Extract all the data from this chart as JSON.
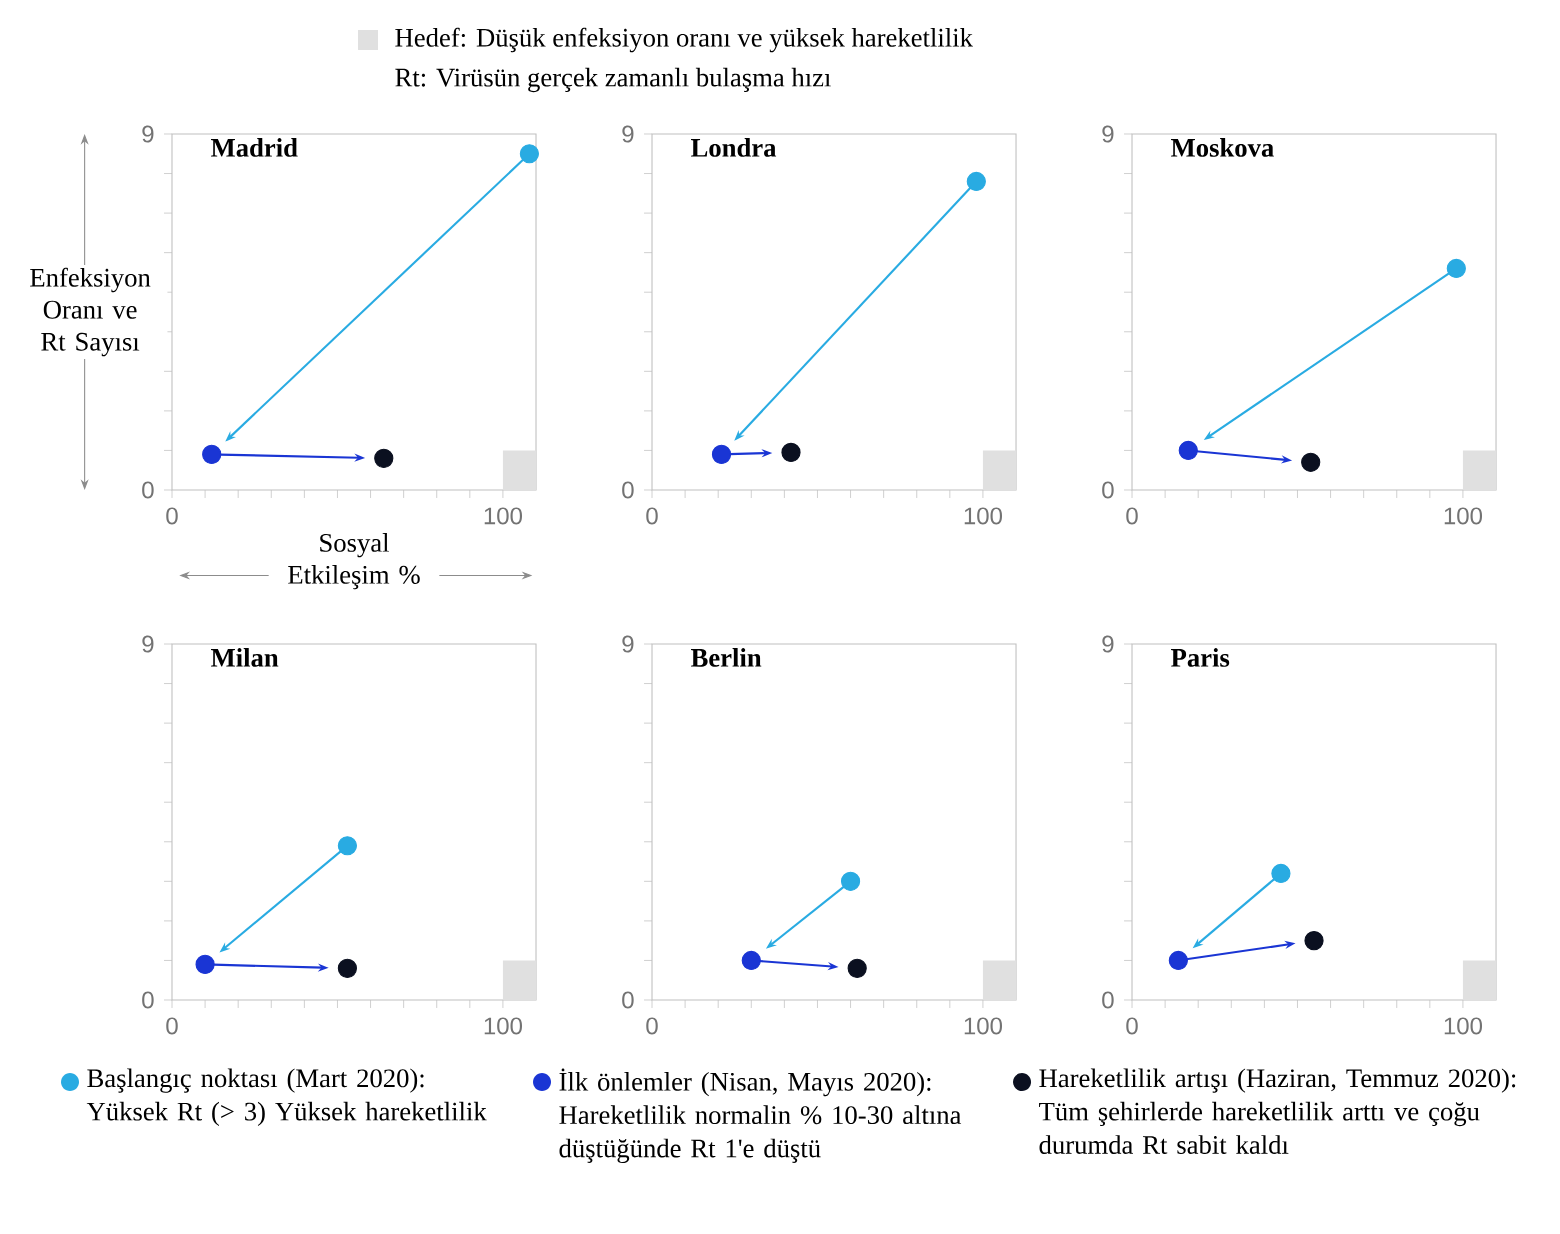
{
  "chart_data": [
    {
      "type": "scatter",
      "title": "Madrid",
      "xlabel": "Sosyal Etkileşim %",
      "ylabel": "Enfeksiyon Oranı ve Rt Sayısı",
      "legend": "bottom",
      "annotations": [
        "Hedef: Düşük enfeksiyon oranı ve yüksek hareketlilik",
        "Rt: Virüsün gerçek zamanlı bulaşma hızı"
      ],
      "xlim": [
        0,
        110
      ],
      "ylim": [
        0,
        9
      ],
      "xticks": [
        0,
        {
          "value": 10,
          "label": null
        },
        {
          "value": 20,
          "label": null
        },
        {
          "value": 30,
          "label": null
        },
        {
          "value": 40,
          "label": null
        },
        {
          "value": 50,
          "label": null
        },
        {
          "value": 60,
          "label": null
        },
        {
          "value": 70,
          "label": null
        },
        {
          "value": 80,
          "label": null
        },
        {
          "value": 90,
          "label": null
        },
        100
      ],
      "yticks": [
        0,
        {
          "value": 1,
          "label": null
        },
        {
          "value": 2,
          "label": null
        },
        {
          "value": 3,
          "label": null
        },
        {
          "value": 4,
          "label": null
        },
        {
          "value": 5,
          "label": null
        },
        {
          "value": 6,
          "label": null
        },
        {
          "value": 7,
          "label": null
        },
        {
          "value": 8,
          "label": null
        },
        9
      ],
      "series": [
        {
          "type": "area",
          "color": "#e0e0e0",
          "x": [
            100,
            110
          ],
          "values": [
            1,
            1
          ]
        },
        {
          "type": "scatter",
          "color": "#29abe2",
          "marker": "circle",
          "name": "Başlangıç noktası (Mart 2020): Yüksek Rt (> 3) Yüksek hareketlilik",
          "x": [
            108
          ],
          "values": [
            8.5
          ]
        },
        {
          "type": "scatter",
          "color": "#1a35d4",
          "marker": "circle",
          "name": "İlk önlemler (Nisan, Mayıs 2020): Hareketlilik normalin % 10-30 altına düştüğünde Rt 1'e düştü",
          "x": [
            12
          ],
          "values": [
            0.9
          ]
        },
        {
          "type": "scatter",
          "color": "#0b1020",
          "marker": "circle",
          "name": "Hareketlilik artışı (Haziran, Temmuz 2020): Tüm şehirlerde hareketlilik arttı ve çoğu durumda Rt sabit kaldı",
          "x": [
            64
          ],
          "values": [
            0.8
          ]
        }
      ]
    },
    {
      "type": "scatter",
      "title": "Londra",
      "xlim": [
        0,
        110
      ],
      "ylim": [
        0,
        9
      ],
      "xticks": [
        0,
        {
          "value": 10,
          "label": null
        },
        {
          "value": 20,
          "label": null
        },
        {
          "value": 30,
          "label": null
        },
        {
          "value": 40,
          "label": null
        },
        {
          "value": 50,
          "label": null
        },
        {
          "value": 60,
          "label": null
        },
        {
          "value": 70,
          "label": null
        },
        {
          "value": 80,
          "label": null
        },
        {
          "value": 90,
          "label": null
        },
        100
      ],
      "yticks": [
        0,
        {
          "value": 1,
          "label": null
        },
        {
          "value": 2,
          "label": null
        },
        {
          "value": 3,
          "label": null
        },
        {
          "value": 4,
          "label": null
        },
        {
          "value": 5,
          "label": null
        },
        {
          "value": 6,
          "label": null
        },
        {
          "value": 7,
          "label": null
        },
        {
          "value": 8,
          "label": null
        },
        9
      ],
      "series": [
        {
          "type": "area",
          "color": "#e0e0e0",
          "x": [
            100,
            110
          ],
          "values": [
            1,
            1
          ]
        },
        {
          "type": "scatter",
          "color": "#29abe2",
          "marker": "circle",
          "x": [
            98
          ],
          "values": [
            7.8
          ]
        },
        {
          "type": "scatter",
          "color": "#1a35d4",
          "marker": "circle",
          "x": [
            21
          ],
          "values": [
            0.9
          ]
        },
        {
          "type": "scatter",
          "color": "#0b1020",
          "marker": "circle",
          "x": [
            42
          ],
          "values": [
            0.95
          ]
        }
      ]
    },
    {
      "type": "scatter",
      "title": "Moskova",
      "xlim": [
        0,
        110
      ],
      "ylim": [
        0,
        9
      ],
      "xticks": [
        0,
        {
          "value": 10,
          "label": null
        },
        {
          "value": 20,
          "label": null
        },
        {
          "value": 30,
          "label": null
        },
        {
          "value": 40,
          "label": null
        },
        {
          "value": 50,
          "label": null
        },
        {
          "value": 60,
          "label": null
        },
        {
          "value": 70,
          "label": null
        },
        {
          "value": 80,
          "label": null
        },
        {
          "value": 90,
          "label": null
        },
        100
      ],
      "yticks": [
        0,
        {
          "value": 1,
          "label": null
        },
        {
          "value": 2,
          "label": null
        },
        {
          "value": 3,
          "label": null
        },
        {
          "value": 4,
          "label": null
        },
        {
          "value": 5,
          "label": null
        },
        {
          "value": 6,
          "label": null
        },
        {
          "value": 7,
          "label": null
        },
        {
          "value": 8,
          "label": null
        },
        9
      ],
      "series": [
        {
          "type": "area",
          "color": "#e0e0e0",
          "x": [
            100,
            110
          ],
          "values": [
            1,
            1
          ]
        },
        {
          "type": "scatter",
          "color": "#29abe2",
          "marker": "circle",
          "x": [
            98
          ],
          "values": [
            5.6
          ]
        },
        {
          "type": "scatter",
          "color": "#1a35d4",
          "marker": "circle",
          "x": [
            17
          ],
          "values": [
            1.0
          ]
        },
        {
          "type": "scatter",
          "color": "#0b1020",
          "marker": "circle",
          "x": [
            54
          ],
          "values": [
            0.7
          ]
        }
      ]
    },
    {
      "type": "scatter",
      "title": "Milan",
      "xlim": [
        0,
        110
      ],
      "ylim": [
        0,
        9
      ],
      "xticks": [
        0,
        {
          "value": 10,
          "label": null
        },
        {
          "value": 20,
          "label": null
        },
        {
          "value": 30,
          "label": null
        },
        {
          "value": 40,
          "label": null
        },
        {
          "value": 50,
          "label": null
        },
        {
          "value": 60,
          "label": null
        },
        {
          "value": 70,
          "label": null
        },
        {
          "value": 80,
          "label": null
        },
        {
          "value": 90,
          "label": null
        },
        100
      ],
      "yticks": [
        0,
        {
          "value": 1,
          "label": null
        },
        {
          "value": 2,
          "label": null
        },
        {
          "value": 3,
          "label": null
        },
        {
          "value": 4,
          "label": null
        },
        {
          "value": 5,
          "label": null
        },
        {
          "value": 6,
          "label": null
        },
        {
          "value": 7,
          "label": null
        },
        {
          "value": 8,
          "label": null
        },
        9
      ],
      "series": [
        {
          "type": "area",
          "color": "#e0e0e0",
          "x": [
            100,
            110
          ],
          "values": [
            1,
            1
          ]
        },
        {
          "type": "scatter",
          "color": "#29abe2",
          "marker": "circle",
          "x": [
            53
          ],
          "values": [
            3.9
          ]
        },
        {
          "type": "scatter",
          "color": "#1a35d4",
          "marker": "circle",
          "x": [
            10
          ],
          "values": [
            0.9
          ]
        },
        {
          "type": "scatter",
          "color": "#0b1020",
          "marker": "circle",
          "x": [
            53
          ],
          "values": [
            0.8
          ]
        }
      ]
    },
    {
      "type": "scatter",
      "title": "Berlin",
      "xlim": [
        0,
        110
      ],
      "ylim": [
        0,
        9
      ],
      "xticks": [
        0,
        {
          "value": 10,
          "label": null
        },
        {
          "value": 20,
          "label": null
        },
        {
          "value": 30,
          "label": null
        },
        {
          "value": 40,
          "label": null
        },
        {
          "value": 50,
          "label": null
        },
        {
          "value": 60,
          "label": null
        },
        {
          "value": 70,
          "label": null
        },
        {
          "value": 80,
          "label": null
        },
        {
          "value": 90,
          "label": null
        },
        100
      ],
      "yticks": [
        0,
        {
          "value": 1,
          "label": null
        },
        {
          "value": 2,
          "label": null
        },
        {
          "value": 3,
          "label": null
        },
        {
          "value": 4,
          "label": null
        },
        {
          "value": 5,
          "label": null
        },
        {
          "value": 6,
          "label": null
        },
        {
          "value": 7,
          "label": null
        },
        {
          "value": 8,
          "label": null
        },
        9
      ],
      "series": [
        {
          "type": "area",
          "color": "#e0e0e0",
          "x": [
            100,
            110
          ],
          "values": [
            1,
            1
          ]
        },
        {
          "type": "scatter",
          "color": "#29abe2",
          "marker": "circle",
          "x": [
            60
          ],
          "values": [
            3.0
          ]
        },
        {
          "type": "scatter",
          "color": "#1a35d4",
          "marker": "circle",
          "x": [
            30
          ],
          "values": [
            1.0
          ]
        },
        {
          "type": "scatter",
          "color": "#0b1020",
          "marker": "circle",
          "x": [
            62
          ],
          "values": [
            0.8
          ]
        }
      ]
    },
    {
      "type": "scatter",
      "title": "Paris",
      "xlim": [
        0,
        110
      ],
      "ylim": [
        0,
        9
      ],
      "xticks": [
        0,
        {
          "value": 10,
          "label": null
        },
        {
          "value": 20,
          "label": null
        },
        {
          "value": 30,
          "label": null
        },
        {
          "value": 40,
          "label": null
        },
        {
          "value": 50,
          "label": null
        },
        {
          "value": 60,
          "label": null
        },
        {
          "value": 70,
          "label": null
        },
        {
          "value": 80,
          "label": null
        },
        {
          "value": 90,
          "label": null
        },
        100
      ],
      "yticks": [
        0,
        {
          "value": 1,
          "label": null
        },
        {
          "value": 2,
          "label": null
        },
        {
          "value": 3,
          "label": null
        },
        {
          "value": 4,
          "label": null
        },
        {
          "value": 5,
          "label": null
        },
        {
          "value": 6,
          "label": null
        },
        {
          "value": 7,
          "label": null
        },
        {
          "value": 8,
          "label": null
        },
        9
      ],
      "series": [
        {
          "type": "area",
          "color": "#e0e0e0",
          "x": [
            100,
            110
          ],
          "values": [
            1,
            1
          ]
        },
        {
          "type": "scatter",
          "color": "#29abe2",
          "marker": "circle",
          "x": [
            45
          ],
          "values": [
            3.2
          ]
        },
        {
          "type": "scatter",
          "color": "#1a35d4",
          "marker": "circle",
          "x": [
            14
          ],
          "values": [
            1.0
          ]
        },
        {
          "type": "scatter",
          "color": "#0b1020",
          "marker": "circle",
          "x": [
            55
          ],
          "values": [
            1.5
          ]
        }
      ]
    }
  ]
}
